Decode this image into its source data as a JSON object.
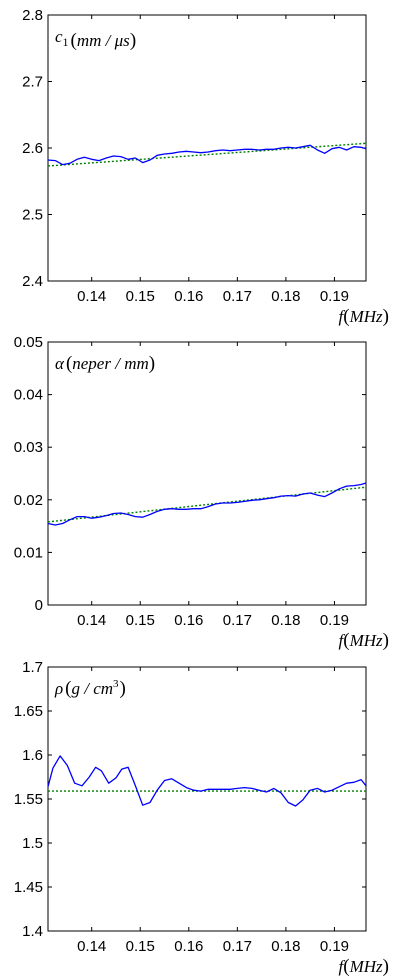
{
  "chart_data": [
    {
      "type": "line",
      "label": {
        "sym": "c",
        "sub": "1",
        "unit": "mm / μs"
      },
      "xlabel": {
        "sym": "f",
        "unit": "MHz"
      },
      "xlim": [
        0.131,
        0.1965
      ],
      "ylim": [
        2.4,
        2.8
      ],
      "x_ticks": [
        "0.14",
        "0.15",
        "0.16",
        "0.17",
        "0.18",
        "0.19"
      ],
      "y_ticks": [
        "2.4",
        "2.5",
        "2.6",
        "2.7",
        "2.8"
      ],
      "measured": {
        "color": "#0000ff",
        "x": [
          0.131,
          0.1325,
          0.134,
          0.1355,
          0.137,
          0.1385,
          0.14,
          0.1415,
          0.143,
          0.1445,
          0.146,
          0.1475,
          0.149,
          0.1505,
          0.152,
          0.1535,
          0.155,
          0.1565,
          0.158,
          0.1595,
          0.161,
          0.1625,
          0.164,
          0.1655,
          0.167,
          0.1685,
          0.17,
          0.1715,
          0.173,
          0.1745,
          0.176,
          0.1775,
          0.179,
          0.1805,
          0.182,
          0.1835,
          0.185,
          0.1865,
          0.188,
          0.1895,
          0.191,
          0.1925,
          0.194,
          0.1955,
          0.1965
        ],
        "y": [
          2.582,
          2.581,
          2.575,
          2.577,
          2.583,
          2.586,
          2.583,
          2.581,
          2.585,
          2.588,
          2.587,
          2.583,
          2.585,
          2.578,
          2.582,
          2.589,
          2.591,
          2.592,
          2.594,
          2.595,
          2.594,
          2.593,
          2.594,
          2.596,
          2.597,
          2.596,
          2.597,
          2.598,
          2.598,
          2.597,
          2.598,
          2.598,
          2.6,
          2.601,
          2.6,
          2.602,
          2.604,
          2.597,
          2.592,
          2.599,
          2.601,
          2.597,
          2.602,
          2.601,
          2.599
        ]
      },
      "fit": {
        "color": "#008000",
        "x": [
          0.131,
          0.1965
        ],
        "y": [
          2.573,
          2.607
        ]
      }
    },
    {
      "type": "line",
      "label": {
        "sym": "α",
        "sub": "",
        "unit": "neper / mm"
      },
      "xlabel": {
        "sym": "f",
        "unit": "MHz"
      },
      "xlim": [
        0.131,
        0.1965
      ],
      "ylim": [
        0,
        0.05
      ],
      "x_ticks": [
        "0.14",
        "0.15",
        "0.16",
        "0.17",
        "0.18",
        "0.19"
      ],
      "y_ticks": [
        "0",
        "0.01",
        "0.02",
        "0.03",
        "0.04",
        "0.05"
      ],
      "measured": {
        "color": "#0000ff",
        "x": [
          0.131,
          0.1325,
          0.134,
          0.1355,
          0.137,
          0.1385,
          0.14,
          0.1415,
          0.143,
          0.1445,
          0.146,
          0.1475,
          0.149,
          0.1505,
          0.152,
          0.1535,
          0.155,
          0.1565,
          0.158,
          0.1595,
          0.161,
          0.1625,
          0.164,
          0.1655,
          0.167,
          0.1685,
          0.17,
          0.1715,
          0.173,
          0.1745,
          0.176,
          0.1775,
          0.179,
          0.1805,
          0.182,
          0.1835,
          0.185,
          0.1865,
          0.188,
          0.1895,
          0.191,
          0.1925,
          0.194,
          0.1955,
          0.1965
        ],
        "y": [
          0.0155,
          0.0152,
          0.0155,
          0.0162,
          0.0168,
          0.0168,
          0.0165,
          0.0167,
          0.017,
          0.0174,
          0.0175,
          0.0172,
          0.0168,
          0.0167,
          0.0172,
          0.0178,
          0.0182,
          0.0183,
          0.0182,
          0.0182,
          0.0183,
          0.0183,
          0.0187,
          0.0192,
          0.0194,
          0.0194,
          0.0195,
          0.0197,
          0.0199,
          0.02,
          0.0202,
          0.0204,
          0.0207,
          0.0208,
          0.0207,
          0.0211,
          0.0213,
          0.0209,
          0.0206,
          0.0213,
          0.0221,
          0.0226,
          0.0227,
          0.0229,
          0.0232
        ]
      },
      "fit": {
        "color": "#008000",
        "x": [
          0.131,
          0.1965
        ],
        "y": [
          0.0158,
          0.0224
        ]
      }
    },
    {
      "type": "line",
      "label": {
        "sym": "ρ",
        "sub": "",
        "unit": "g / cm",
        "sup": "3"
      },
      "xlabel": {
        "sym": "f",
        "unit": "MHz"
      },
      "xlim": [
        0.131,
        0.1965
      ],
      "ylim": [
        1.4,
        1.7
      ],
      "x_ticks": [
        "0.14",
        "0.15",
        "0.16",
        "0.17",
        "0.18",
        "0.19"
      ],
      "y_ticks": [
        "1.4",
        "1.45",
        "1.5",
        "1.55",
        "1.6",
        "1.65",
        "1.7"
      ],
      "measured": {
        "color": "#0000ff",
        "x": [
          0.131,
          0.132,
          0.1335,
          0.135,
          0.1365,
          0.138,
          0.1395,
          0.1408,
          0.142,
          0.1435,
          0.145,
          0.1462,
          0.1475,
          0.149,
          0.1505,
          0.152,
          0.1535,
          0.155,
          0.1565,
          0.158,
          0.1595,
          0.161,
          0.1625,
          0.164,
          0.1655,
          0.167,
          0.1685,
          0.17,
          0.1715,
          0.173,
          0.1745,
          0.176,
          0.1775,
          0.179,
          0.1805,
          0.182,
          0.1835,
          0.185,
          0.1865,
          0.188,
          0.1895,
          0.191,
          0.1925,
          0.194,
          0.1955,
          0.1965
        ],
        "y": [
          1.564,
          1.585,
          1.599,
          1.588,
          1.568,
          1.565,
          1.575,
          1.586,
          1.582,
          1.568,
          1.574,
          1.584,
          1.586,
          1.565,
          1.543,
          1.546,
          1.56,
          1.571,
          1.573,
          1.568,
          1.563,
          1.56,
          1.559,
          1.561,
          1.561,
          1.561,
          1.561,
          1.562,
          1.563,
          1.562,
          1.56,
          1.558,
          1.562,
          1.557,
          1.546,
          1.542,
          1.549,
          1.56,
          1.562,
          1.558,
          1.56,
          1.564,
          1.568,
          1.569,
          1.572,
          1.565
        ]
      },
      "fit": {
        "color": "#008000",
        "x": [
          0.131,
          0.1965
        ],
        "y": [
          1.559,
          1.559
        ]
      }
    }
  ]
}
